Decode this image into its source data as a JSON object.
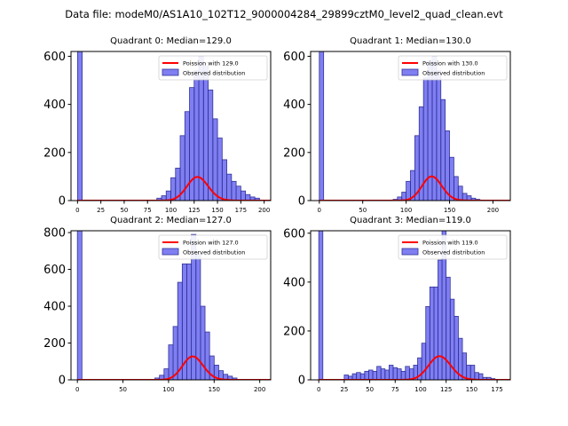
{
  "suptitle": "Data file: modeM0/AS1A10_102T12_9000004284_29899cztM0_level2_quad_clean.evt",
  "colors": {
    "bars": "#0000e6",
    "bar_edge": "#333399",
    "fit": "#ff0000"
  },
  "chart_data": [
    {
      "type": "bar",
      "title": "Quadrant 0: Median=129.0",
      "median": 129.0,
      "legend": [
        "Poission with 129.0",
        "Observed distribution"
      ],
      "xlim": [
        -7,
        207
      ],
      "ylim": [
        0,
        620
      ],
      "xticks": [
        0,
        25,
        50,
        75,
        100,
        125,
        150,
        175,
        200
      ],
      "yticks": [
        0,
        200,
        400,
        600
      ],
      "bin_width": 5,
      "bins": [
        [
          0,
          620
        ],
        [
          85,
          10
        ],
        [
          90,
          20
        ],
        [
          95,
          40
        ],
        [
          100,
          95
        ],
        [
          105,
          135
        ],
        [
          110,
          270
        ],
        [
          115,
          370
        ],
        [
          120,
          470
        ],
        [
          125,
          540
        ],
        [
          130,
          600
        ],
        [
          135,
          560
        ],
        [
          140,
          460
        ],
        [
          145,
          340
        ],
        [
          150,
          260
        ],
        [
          155,
          170
        ],
        [
          160,
          110
        ],
        [
          165,
          80
        ],
        [
          170,
          60
        ],
        [
          175,
          40
        ],
        [
          180,
          25
        ],
        [
          185,
          15
        ],
        [
          190,
          10
        ]
      ],
      "poisson_mu": 129.0,
      "poisson_scale": 2800
    },
    {
      "type": "bar",
      "title": "Quadrant 1: Median=130.0",
      "median": 130.0,
      "legend": [
        "Poission with 130.0",
        "Observed distribution"
      ],
      "xlim": [
        -10,
        220
      ],
      "ylim": [
        0,
        620
      ],
      "xticks": [
        0,
        50,
        100,
        150,
        200
      ],
      "yticks": [
        0,
        200,
        400,
        600
      ],
      "bin_width": 5,
      "bins": [
        [
          0,
          620
        ],
        [
          85,
          5
        ],
        [
          90,
          15
        ],
        [
          95,
          35
        ],
        [
          100,
          80
        ],
        [
          105,
          125
        ],
        [
          110,
          270
        ],
        [
          115,
          390
        ],
        [
          120,
          510
        ],
        [
          125,
          580
        ],
        [
          130,
          600
        ],
        [
          135,
          540
        ],
        [
          140,
          420
        ],
        [
          145,
          290
        ],
        [
          150,
          180
        ],
        [
          155,
          100
        ],
        [
          160,
          60
        ],
        [
          165,
          30
        ],
        [
          170,
          20
        ],
        [
          175,
          10
        ],
        [
          180,
          5
        ]
      ],
      "poisson_mu": 130.0,
      "poisson_scale": 2870
    },
    {
      "type": "bar",
      "title": "Quadrant 2: Median=127.0",
      "median": 127.0,
      "legend": [
        "Poission with 127.0",
        "Observed distribution"
      ],
      "xlim": [
        -7,
        212
      ],
      "ylim": [
        0,
        810
      ],
      "xticks": [
        0,
        50,
        100,
        150,
        200
      ],
      "yticks": [
        0,
        200,
        400,
        600,
        800
      ],
      "bin_width": 5,
      "bins": [
        [
          0,
          810
        ],
        [
          85,
          10
        ],
        [
          90,
          25
        ],
        [
          95,
          60
        ],
        [
          100,
          190
        ],
        [
          105,
          290
        ],
        [
          110,
          530
        ],
        [
          115,
          630
        ],
        [
          120,
          630
        ],
        [
          125,
          790
        ],
        [
          130,
          690
        ],
        [
          135,
          400
        ],
        [
          140,
          260
        ],
        [
          145,
          130
        ],
        [
          150,
          80
        ],
        [
          155,
          50
        ],
        [
          160,
          30
        ],
        [
          165,
          20
        ],
        [
          170,
          10
        ]
      ],
      "poisson_mu": 127.0,
      "poisson_scale": 3600
    },
    {
      "type": "bar",
      "title": "Quadrant 3: Median=119.0",
      "median": 119.0,
      "legend": [
        "Poission with 119.0",
        "Observed distribution"
      ],
      "xlim": [
        -8,
        188
      ],
      "ylim": [
        0,
        610
      ],
      "xticks": [
        0,
        25,
        50,
        75,
        100,
        125,
        150,
        175
      ],
      "yticks": [
        0,
        200,
        400,
        600
      ],
      "bin_width": 4,
      "bins": [
        [
          0,
          610
        ],
        [
          25,
          20
        ],
        [
          29,
          15
        ],
        [
          33,
          25
        ],
        [
          37,
          30
        ],
        [
          41,
          25
        ],
        [
          45,
          35
        ],
        [
          49,
          40
        ],
        [
          53,
          35
        ],
        [
          57,
          55
        ],
        [
          61,
          45
        ],
        [
          65,
          40
        ],
        [
          69,
          60
        ],
        [
          73,
          50
        ],
        [
          77,
          45
        ],
        [
          81,
          35
        ],
        [
          85,
          55
        ],
        [
          89,
          45
        ],
        [
          93,
          60
        ],
        [
          97,
          90
        ],
        [
          101,
          150
        ],
        [
          105,
          300
        ],
        [
          109,
          380
        ],
        [
          113,
          380
        ],
        [
          117,
          490
        ],
        [
          121,
          620
        ],
        [
          125,
          420
        ],
        [
          129,
          330
        ],
        [
          133,
          260
        ],
        [
          137,
          170
        ],
        [
          141,
          110
        ],
        [
          145,
          60
        ],
        [
          149,
          60
        ],
        [
          153,
          30
        ],
        [
          157,
          25
        ],
        [
          161,
          10
        ],
        [
          165,
          10
        ],
        [
          169,
          5
        ]
      ],
      "poisson_mu": 119.0,
      "poisson_scale": 2650
    }
  ]
}
